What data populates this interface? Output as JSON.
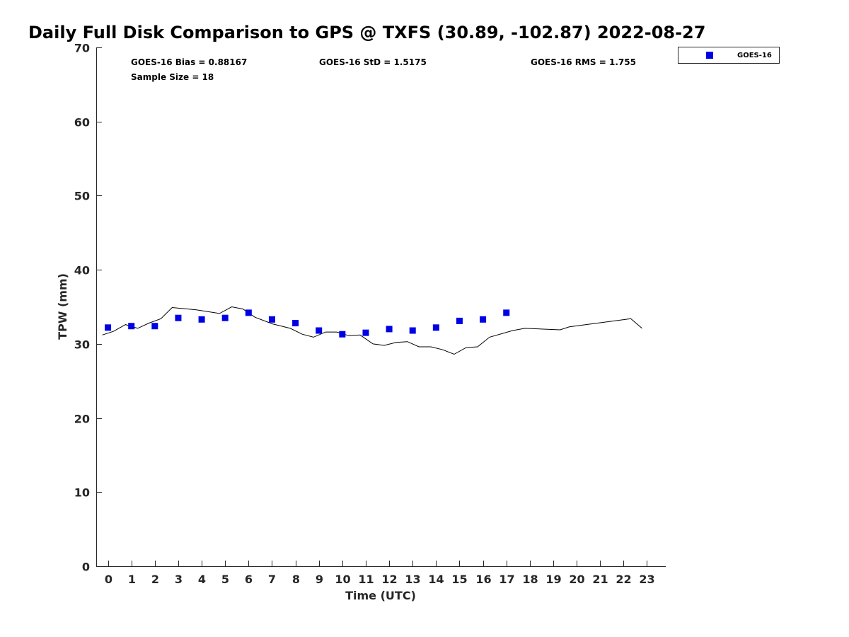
{
  "chart_data": {
    "type": "scatter",
    "title": "Daily Full Disk Comparison to GPS @ TXFS (30.89, -102.87) 2022-08-27",
    "xlabel": "Time (UTC)",
    "ylabel": "TPW (mm)",
    "xlim": [
      -0.5,
      23.8
    ],
    "ylim": [
      0,
      70
    ],
    "xticks": [
      0,
      1,
      2,
      3,
      4,
      5,
      6,
      7,
      8,
      9,
      10,
      11,
      12,
      13,
      14,
      15,
      16,
      17,
      18,
      19,
      20,
      21,
      22,
      23
    ],
    "yticks": [
      0,
      10,
      20,
      30,
      40,
      50,
      60,
      70
    ],
    "grid": false,
    "legend": {
      "placement": "top-right-outside",
      "entries": [
        "GOES-16"
      ]
    },
    "stats": {
      "bias": "GOES-16 Bias = 0.88167",
      "std": "GOES-16 StD = 1.5175",
      "rms": "GOES-16 RMS = 1.755",
      "sample": "Sample Size = 18"
    },
    "series": [
      {
        "name": "GOES-16",
        "kind": "scatter",
        "color": "#0000e6",
        "x": [
          0,
          1,
          2,
          3,
          4,
          5,
          6,
          7,
          8,
          9,
          10,
          11,
          12,
          13,
          14,
          15,
          16,
          17
        ],
        "y": [
          32.2,
          32.4,
          32.4,
          33.5,
          33.3,
          33.5,
          34.2,
          33.3,
          32.8,
          31.8,
          31.3,
          31.5,
          32.0,
          31.8,
          32.2,
          33.1,
          33.3,
          34.2
        ]
      },
      {
        "name": "GPS",
        "kind": "line",
        "color": "#000000",
        "x": [
          -0.24,
          0.24,
          0.75,
          1.27,
          1.75,
          2.26,
          2.74,
          3.77,
          4.76,
          5.28,
          5.76,
          6.27,
          7.02,
          7.78,
          8.29,
          8.77,
          9.29,
          9.77,
          10.28,
          10.76,
          11.31,
          11.79,
          12.3,
          12.78,
          13.27,
          13.78,
          14.29,
          14.77,
          15.28,
          15.77,
          16.28,
          17.27,
          17.79,
          19.29,
          19.69,
          22.31,
          22.79
        ],
        "y": [
          31.2,
          31.7,
          32.6,
          32.1,
          32.8,
          33.4,
          34.9,
          34.6,
          34.1,
          35.0,
          34.7,
          33.6,
          32.7,
          32.1,
          31.3,
          30.9,
          31.6,
          31.6,
          31.1,
          31.2,
          30.0,
          29.8,
          30.2,
          30.3,
          29.6,
          29.6,
          29.2,
          28.6,
          29.5,
          29.6,
          30.9,
          31.8,
          32.1,
          31.9,
          32.3,
          33.4,
          32.1
        ]
      }
    ]
  }
}
